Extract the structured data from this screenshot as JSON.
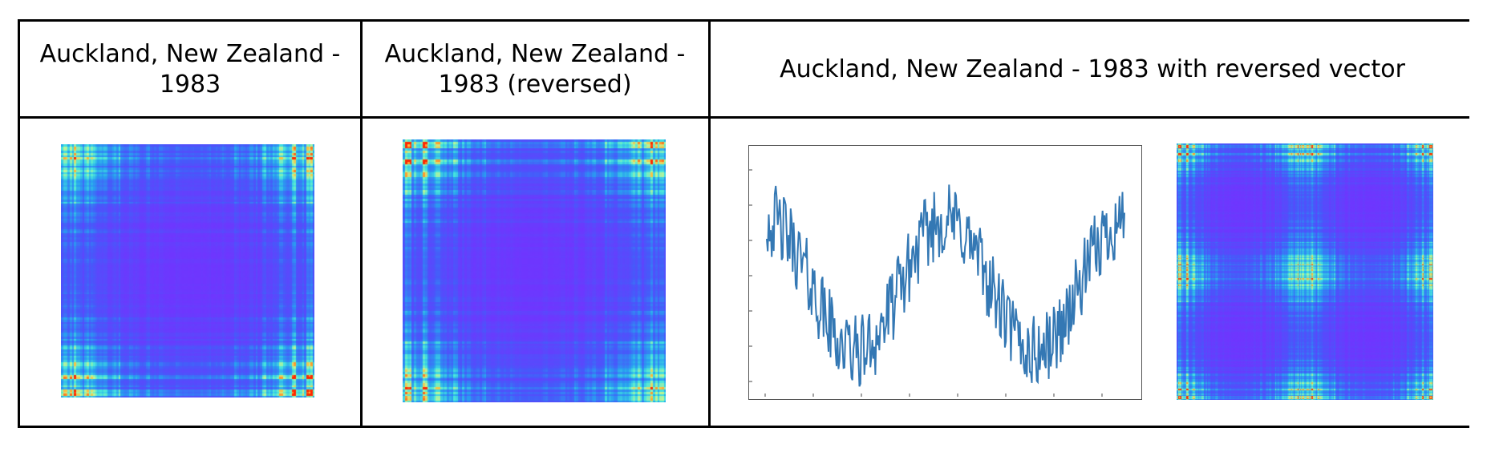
{
  "table": {
    "headers": [
      "Auckland, New Zealand - 1983",
      "Auckland, New Zealand - 1983 (reversed)",
      "Auckland, New Zealand - 1983 with reversed vector"
    ]
  },
  "figures": {
    "recurrence_plot_original": {
      "colormap": "rainbow",
      "base_color": "#7a2cff",
      "hot_color": "#ff2a00"
    },
    "recurrence_plot_reversed": {
      "colormap": "rainbow",
      "base_color": "#7a2cff",
      "hot_color": "#ff2a00"
    },
    "recurrence_plot_combined": {
      "colormap": "rainbow",
      "base_color": "#7a2cff",
      "hot_color": "#ff2a00"
    }
  },
  "chart_data": {
    "type": "line",
    "title": "",
    "xlabel": "",
    "ylabel": "",
    "series_color": "#3478b4",
    "shape": "seasonal temperature series followed by its reversed copy (W shape)",
    "description_values": {
      "start": 0.72,
      "first_min": 0.15,
      "middle_peak": 0.62,
      "second_min": 0.15,
      "end": 0.72
    }
  }
}
